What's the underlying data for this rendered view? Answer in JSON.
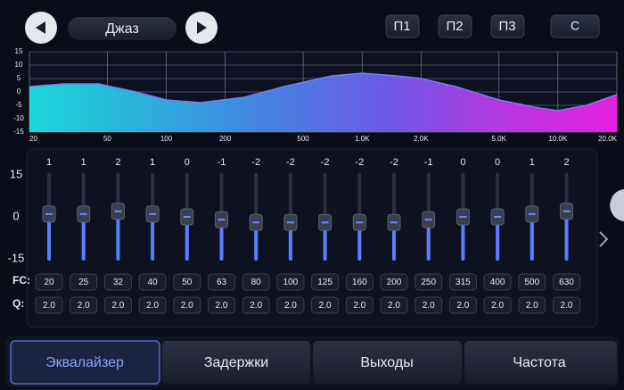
{
  "header": {
    "preset_name": "Джаз",
    "presets": [
      "П1",
      "П2",
      "П3"
    ],
    "reset": "C"
  },
  "graph": {
    "ylim": [
      -15,
      15
    ],
    "yticks": [
      15,
      10,
      5,
      0,
      -5,
      -10,
      -15
    ],
    "xlim": [
      20,
      20000
    ],
    "log_x": true,
    "xticks": [
      20,
      50,
      100,
      200,
      500,
      {
        "value": 1000,
        "label": "1.0K"
      },
      {
        "value": 2000,
        "label": "2.0K"
      },
      {
        "value": 5000,
        "label": "5.0K"
      },
      {
        "value": 10000,
        "label": "10.0K"
      },
      {
        "value": 20000,
        "label": "20.0K"
      }
    ],
    "curve": {
      "x": [
        20,
        30,
        45,
        70,
        100,
        150,
        250,
        400,
        700,
        1000,
        1500,
        2000,
        3000,
        5000,
        8000,
        10000,
        14000,
        20000
      ],
      "y": [
        2,
        3,
        3,
        0,
        -3,
        -4,
        -2,
        2,
        6,
        7,
        6,
        5,
        2,
        -3,
        -6,
        -7,
        -5,
        -1
      ]
    }
  },
  "sliders": {
    "scale": [
      15,
      0,
      -15
    ],
    "fc_label": "FC:",
    "q_label": "Q:",
    "gains": [
      1,
      1,
      2,
      1,
      0,
      -1,
      -2,
      -2,
      -2,
      -2,
      -2,
      -1,
      0,
      0,
      1,
      2
    ],
    "fc": [
      20,
      25,
      32,
      40,
      50,
      63,
      80,
      100,
      125,
      160,
      200,
      250,
      315,
      400,
      500,
      630
    ],
    "q": [
      "2.0",
      "2.0",
      "2.0",
      "2.0",
      "2.0",
      "2.0",
      "2.0",
      "2.0",
      "2.0",
      "2.0",
      "2.0",
      "2.0",
      "2.0",
      "2.0",
      "2.0",
      "2.0"
    ]
  },
  "tabs": [
    "Эквалайзер",
    "Задержки",
    "Выходы",
    "Частота"
  ]
}
